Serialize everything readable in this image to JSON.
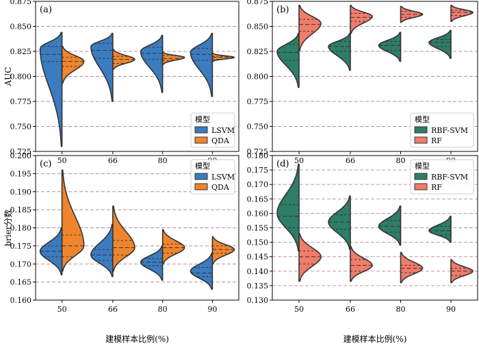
{
  "figure": {
    "xlabel": "建模样本比例(%)",
    "categories": [
      "50",
      "66",
      "80",
      "90"
    ]
  },
  "colors": {
    "LSVM": "#3b7bbf",
    "QDA": "#f0852d",
    "RBF-SVM": "#2e7d66",
    "RF": "#f07c6a",
    "grid": "#b58a9c",
    "outline": "#333333"
  },
  "chart_data": [
    {
      "type": "violin",
      "panel": "(a)",
      "ylabel": "AUC",
      "ylim": [
        0.725,
        0.875
      ],
      "yticks": [
        "0.725",
        "0.750",
        "0.775",
        "0.800",
        "0.825",
        "0.850",
        "0.875"
      ],
      "legend": {
        "title": "模型",
        "entries": [
          "LSVM",
          "QDA"
        ],
        "position": "bottom-right"
      },
      "series": [
        {
          "name": "LSVM",
          "side": "left",
          "values": [
            {
              "min": 0.73,
              "max": 0.844,
              "mode": 0.828,
              "q1": 0.815,
              "median": 0.822,
              "q3": 0.83
            },
            {
              "min": 0.775,
              "max": 0.843,
              "mode": 0.83,
              "q1": 0.818,
              "median": 0.826,
              "q3": 0.833
            },
            {
              "min": 0.784,
              "max": 0.841,
              "mode": 0.825,
              "q1": 0.817,
              "median": 0.823,
              "q3": 0.829
            },
            {
              "min": 0.78,
              "max": 0.843,
              "mode": 0.824,
              "q1": 0.816,
              "median": 0.822,
              "q3": 0.828
            }
          ]
        },
        {
          "name": "QDA",
          "side": "right",
          "values": [
            {
              "min": 0.793,
              "max": 0.83,
              "mode": 0.815,
              "q1": 0.81,
              "median": 0.815,
              "q3": 0.819
            },
            {
              "min": 0.807,
              "max": 0.827,
              "mode": 0.817,
              "q1": 0.813,
              "median": 0.817,
              "q3": 0.82
            },
            {
              "min": 0.812,
              "max": 0.824,
              "mode": 0.819,
              "q1": 0.816,
              "median": 0.818,
              "q3": 0.821
            },
            {
              "min": 0.815,
              "max": 0.823,
              "mode": 0.819,
              "q1": 0.817,
              "median": 0.819,
              "q3": 0.82
            }
          ]
        }
      ]
    },
    {
      "type": "violin",
      "panel": "(b)",
      "ylabel": "",
      "ylim": [
        0.725,
        0.875
      ],
      "yticks": [
        "0.725",
        "0.750",
        "0.775",
        "0.800",
        "0.825",
        "0.850",
        "0.875"
      ],
      "legend": {
        "title": "模型",
        "entries": [
          "RBF-SVM",
          "RF"
        ],
        "position": "bottom-right"
      },
      "series": [
        {
          "name": "RBF-SVM",
          "side": "left",
          "values": [
            {
              "min": 0.789,
              "max": 0.843,
              "mode": 0.825,
              "q1": 0.816,
              "median": 0.824,
              "q3": 0.832
            },
            {
              "min": 0.806,
              "max": 0.843,
              "mode": 0.83,
              "q1": 0.825,
              "median": 0.83,
              "q3": 0.835
            },
            {
              "min": 0.815,
              "max": 0.844,
              "mode": 0.831,
              "q1": 0.826,
              "median": 0.831,
              "q3": 0.835
            },
            {
              "min": 0.818,
              "max": 0.846,
              "mode": 0.834,
              "q1": 0.83,
              "median": 0.834,
              "q3": 0.837
            }
          ]
        },
        {
          "name": "RF",
          "side": "right",
          "values": [
            {
              "min": 0.826,
              "max": 0.871,
              "mode": 0.853,
              "q1": 0.845,
              "median": 0.852,
              "q3": 0.857
            },
            {
              "min": 0.843,
              "max": 0.871,
              "mode": 0.86,
              "q1": 0.855,
              "median": 0.859,
              "q3": 0.863
            },
            {
              "min": 0.854,
              "max": 0.87,
              "mode": 0.862,
              "q1": 0.859,
              "median": 0.862,
              "q3": 0.865
            },
            {
              "min": 0.855,
              "max": 0.871,
              "mode": 0.864,
              "q1": 0.861,
              "median": 0.864,
              "q3": 0.866
            }
          ]
        }
      ]
    },
    {
      "type": "violin",
      "panel": "(c)",
      "ylabel": "brier分数",
      "ylim": [
        0.16,
        0.2
      ],
      "yticks": [
        "0.160",
        "0.165",
        "0.170",
        "0.175",
        "0.180",
        "0.185",
        "0.190",
        "0.195",
        "0.200"
      ],
      "legend": {
        "title": "模型",
        "entries": [
          "LSVM",
          "QDA"
        ],
        "position": "top-right"
      },
      "series": [
        {
          "name": "LSVM",
          "side": "left",
          "values": [
            {
              "min": 0.167,
              "max": 0.18,
              "mode": 0.1735,
              "q1": 0.172,
              "median": 0.1735,
              "q3": 0.175
            },
            {
              "min": 0.1665,
              "max": 0.181,
              "mode": 0.1725,
              "q1": 0.171,
              "median": 0.1725,
              "q3": 0.174
            },
            {
              "min": 0.1655,
              "max": 0.175,
              "mode": 0.1705,
              "q1": 0.1695,
              "median": 0.1705,
              "q3": 0.1715
            },
            {
              "min": 0.163,
              "max": 0.173,
              "mode": 0.168,
              "q1": 0.1665,
              "median": 0.1675,
              "q3": 0.169
            }
          ]
        },
        {
          "name": "QDA",
          "side": "right",
          "values": [
            {
              "min": 0.168,
              "max": 0.196,
              "mode": 0.175,
              "q1": 0.172,
              "median": 0.175,
              "q3": 0.178
            },
            {
              "min": 0.168,
              "max": 0.186,
              "mode": 0.1745,
              "q1": 0.1725,
              "median": 0.1745,
              "q3": 0.1765
            },
            {
              "min": 0.17,
              "max": 0.1795,
              "mode": 0.1745,
              "q1": 0.173,
              "median": 0.1745,
              "q3": 0.1755
            },
            {
              "min": 0.17,
              "max": 0.1775,
              "mode": 0.174,
              "q1": 0.173,
              "median": 0.174,
              "q3": 0.175
            }
          ]
        }
      ]
    },
    {
      "type": "violin",
      "panel": "(d)",
      "ylabel": "",
      "ylim": [
        0.13,
        0.18
      ],
      "yticks": [
        "0.130",
        "0.135",
        "0.140",
        "0.145",
        "0.150",
        "0.155",
        "0.160",
        "0.165",
        "0.170",
        "0.175",
        "0.180"
      ],
      "legend": {
        "title": "模型",
        "entries": [
          "RBF-SVM",
          "RF"
        ],
        "position": "top-right"
      },
      "series": [
        {
          "name": "RBF-SVM",
          "side": "left",
          "values": [
            {
              "min": 0.147,
              "max": 0.177,
              "mode": 0.16,
              "q1": 0.155,
              "median": 0.159,
              "q3": 0.163
            },
            {
              "min": 0.1475,
              "max": 0.166,
              "mode": 0.157,
              "q1": 0.1545,
              "median": 0.157,
              "q3": 0.1595
            },
            {
              "min": 0.149,
              "max": 0.1625,
              "mode": 0.1555,
              "q1": 0.1535,
              "median": 0.1555,
              "q3": 0.1575
            },
            {
              "min": 0.15,
              "max": 0.159,
              "mode": 0.154,
              "q1": 0.1525,
              "median": 0.154,
              "q3": 0.1555
            }
          ]
        },
        {
          "name": "RF",
          "side": "right",
          "values": [
            {
              "min": 0.1365,
              "max": 0.153,
              "mode": 0.145,
              "q1": 0.1425,
              "median": 0.145,
              "q3": 0.147
            },
            {
              "min": 0.1365,
              "max": 0.1485,
              "mode": 0.142,
              "q1": 0.14,
              "median": 0.142,
              "q3": 0.144
            },
            {
              "min": 0.136,
              "max": 0.1465,
              "mode": 0.141,
              "q1": 0.1395,
              "median": 0.141,
              "q3": 0.142
            },
            {
              "min": 0.136,
              "max": 0.144,
              "mode": 0.14,
              "q1": 0.1385,
              "median": 0.14,
              "q3": 0.141
            }
          ]
        }
      ]
    }
  ]
}
